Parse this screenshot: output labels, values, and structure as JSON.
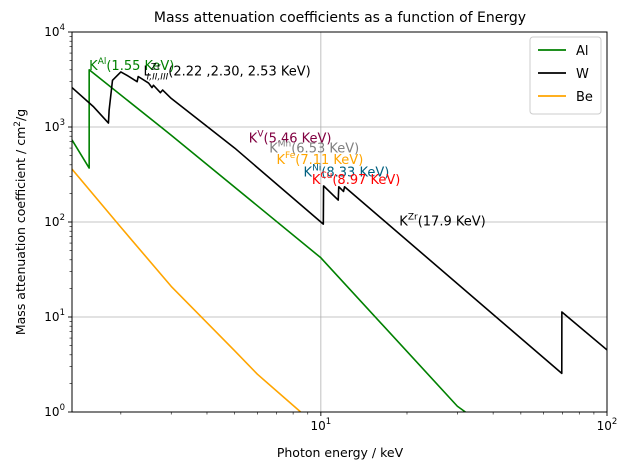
{
  "chart_data": {
    "type": "line",
    "title": "Mass attenuation coefficients as a function of Energy",
    "xlabel": "Photon energy / keV",
    "ylabel_main": "Mass attenuation coefficient / cm",
    "ylabel_sup": "2",
    "ylabel_tail": "/g",
    "xscale": "log",
    "yscale": "log",
    "xlim": [
      1.35,
      100
    ],
    "ylim": [
      1,
      10000
    ],
    "grid": true,
    "legend_placement": "top-right",
    "x_ticks": [
      {
        "value": 10,
        "base": "10",
        "exp": "1"
      },
      {
        "value": 100,
        "base": "10",
        "exp": "2"
      }
    ],
    "y_ticks": [
      {
        "value": 1,
        "base": "10",
        "exp": "0"
      },
      {
        "value": 10,
        "base": "10",
        "exp": "1"
      },
      {
        "value": 100,
        "base": "10",
        "exp": "2"
      },
      {
        "value": 1000,
        "base": "10",
        "exp": "3"
      },
      {
        "value": 10000,
        "base": "10",
        "exp": "4"
      }
    ],
    "series": [
      {
        "name": "Al",
        "color": "#008000",
        "points": [
          [
            1.35,
            730
          ],
          [
            1.55,
            370
          ],
          [
            1.55,
            4000
          ],
          [
            3.0,
            820
          ],
          [
            10,
            42
          ],
          [
            30,
            1.15
          ],
          [
            32,
            1.0
          ]
        ]
      },
      {
        "name": "W",
        "color": "#000000",
        "points": [
          [
            1.35,
            2600
          ],
          [
            1.6,
            1650
          ],
          [
            1.81,
            1100
          ],
          [
            1.82,
            1500
          ],
          [
            1.87,
            3100
          ],
          [
            2.0,
            3800
          ],
          [
            2.1,
            3500
          ],
          [
            2.28,
            3000
          ],
          [
            2.3,
            3400
          ],
          [
            2.5,
            2900
          ],
          [
            2.57,
            2600
          ],
          [
            2.6,
            2750
          ],
          [
            2.75,
            2300
          ],
          [
            2.8,
            2450
          ],
          [
            3.0,
            2000
          ],
          [
            5.0,
            600
          ],
          [
            10.2,
            95
          ],
          [
            10.22,
            240
          ],
          [
            11.5,
            170
          ],
          [
            11.55,
            235
          ],
          [
            12.0,
            210
          ],
          [
            12.1,
            235
          ],
          [
            69.5,
            2.55
          ],
          [
            69.55,
            11.3
          ],
          [
            100,
            4.5
          ]
        ]
      },
      {
        "name": "Be",
        "color": "#FFA500",
        "points": [
          [
            1.35,
            360
          ],
          [
            2.0,
            88
          ],
          [
            3.0,
            21
          ],
          [
            5.0,
            4.4
          ],
          [
            6.0,
            2.5
          ],
          [
            8.5,
            1.0
          ]
        ]
      }
    ],
    "annotations": [
      {
        "id": "al",
        "x": 1.55,
        "y": 4000,
        "color": "#008000",
        "base": "K",
        "sup": "Al",
        "sub": "",
        "tail": "(1.55 KeV)"
      },
      {
        "id": "zr-l",
        "x": 2.4,
        "y": 3500,
        "color": "#000000",
        "base": "L",
        "sup": "Zr",
        "sub": "I,II,III",
        "tail": "(2.22 ,2.30, 2.53 KeV)"
      },
      {
        "id": "v",
        "x": 5.6,
        "y": 690,
        "color": "#800040",
        "base": "K",
        "sup": "V",
        "sub": "",
        "tail": "(5.46 KeV)"
      },
      {
        "id": "mn",
        "x": 6.6,
        "y": 540,
        "color": "#808080",
        "base": "K",
        "sup": "Mn",
        "sub": "",
        "tail": "(6.53 KeV)"
      },
      {
        "id": "fe",
        "x": 7.0,
        "y": 410,
        "color": "#FFA500",
        "base": "K",
        "sup": "Fe",
        "sub": "",
        "tail": "(7.11 KeV)"
      },
      {
        "id": "ni",
        "x": 8.7,
        "y": 300,
        "color": "#006080",
        "base": "K",
        "sup": "Ni",
        "sub": "",
        "tail": "(8.33 KeV)"
      },
      {
        "id": "cu",
        "x": 9.3,
        "y": 250,
        "color": "#FF0000",
        "base": "K",
        "sup": "Cu",
        "sub": "",
        "tail": "(8.97 KeV)"
      },
      {
        "id": "zr-k",
        "x": 18.8,
        "y": 92,
        "color": "#000000",
        "base": "K",
        "sup": "Zr",
        "sub": "",
        "tail": "(17.9 KeV)"
      }
    ]
  }
}
